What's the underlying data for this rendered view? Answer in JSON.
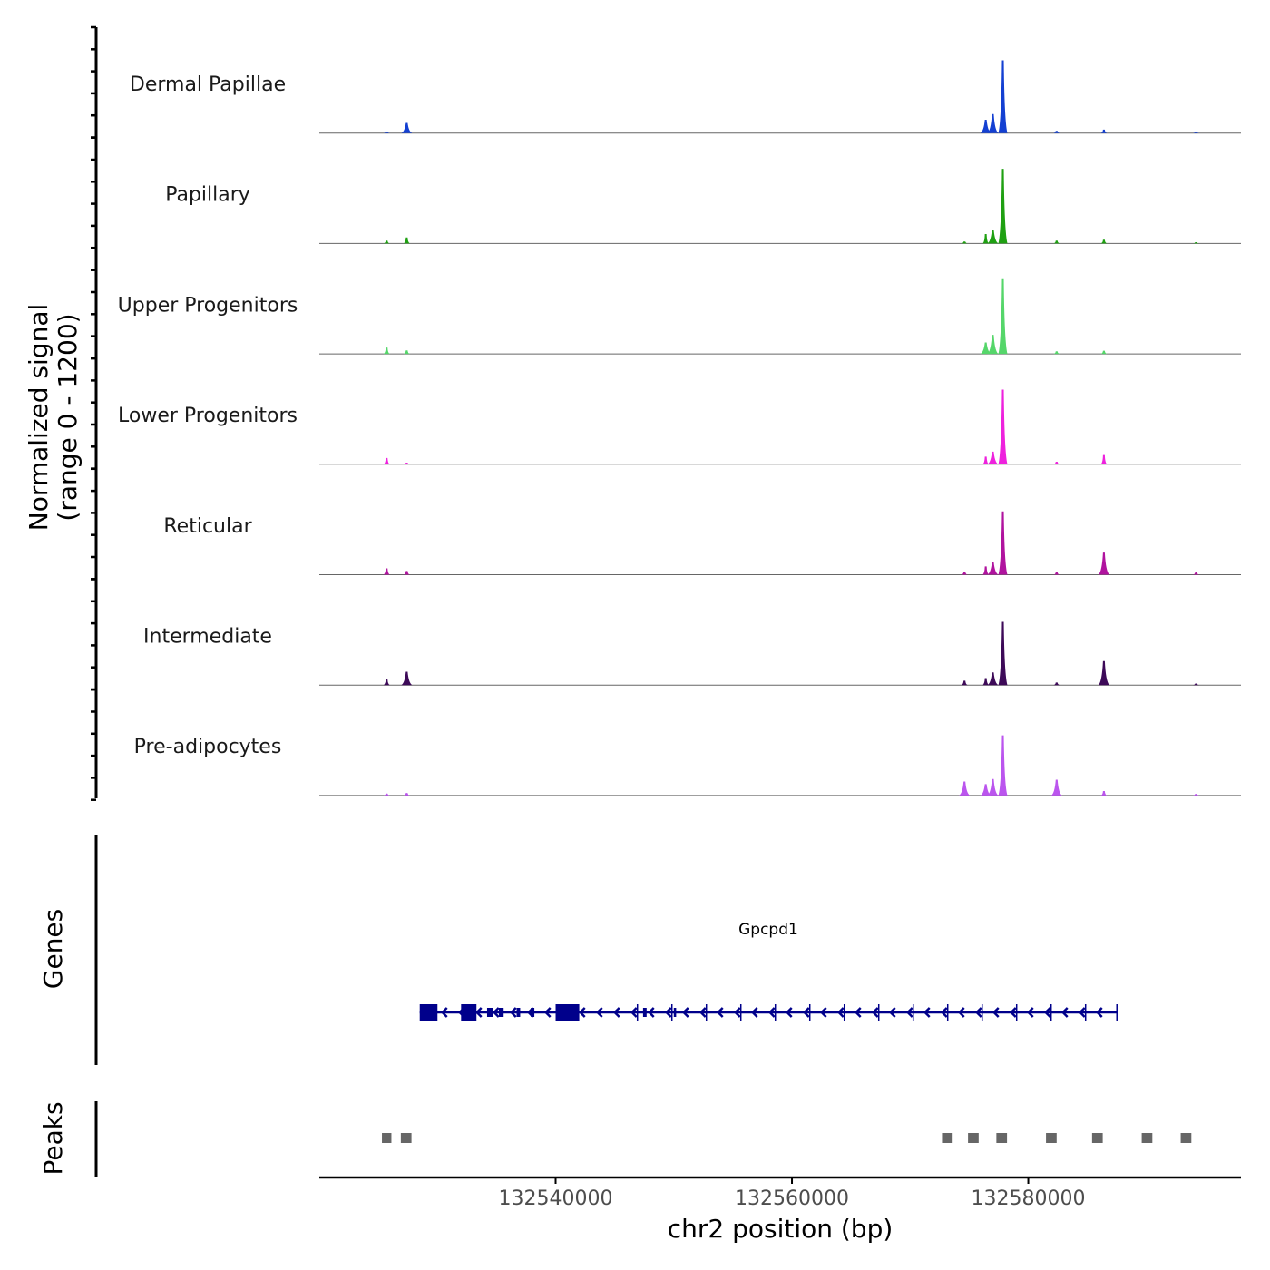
{
  "chart_data": {
    "type": "area",
    "chromosome": "chr2",
    "xlabel": "chr2 position (bp)",
    "ylabel_line1": "Normalized signal",
    "ylabel_line2": "(range 0 - 1200)",
    "xlim": [
      132520000,
      132598000
    ],
    "x_ticks": [
      132540000,
      132560000,
      132580000
    ],
    "x_tick_labels": [
      "132540000",
      "132560000",
      "132580000"
    ],
    "ylim": [
      0,
      1200
    ],
    "baseline_color": "#666666",
    "tracks": [
      {
        "name": "Dermal Papillae",
        "color": "#1440d2",
        "peaks": [
          [
            132525700,
            25
          ],
          [
            132527400,
            160
          ],
          [
            132576400,
            210
          ],
          [
            132577000,
            300
          ],
          [
            132577850,
            1150
          ],
          [
            132582400,
            35
          ],
          [
            132586400,
            55
          ],
          [
            132594200,
            20
          ]
        ]
      },
      {
        "name": "Papillary",
        "color": "#1fa012",
        "peaks": [
          [
            132525700,
            45
          ],
          [
            132527400,
            95
          ],
          [
            132574600,
            30
          ],
          [
            132576400,
            150
          ],
          [
            132577000,
            220
          ],
          [
            132577850,
            1180
          ],
          [
            132582400,
            45
          ],
          [
            132586400,
            60
          ],
          [
            132594200,
            20
          ]
        ]
      },
      {
        "name": "Upper Progenitors",
        "color": "#55d66a",
        "peaks": [
          [
            132525700,
            100
          ],
          [
            132527400,
            55
          ],
          [
            132576400,
            180
          ],
          [
            132577000,
            300
          ],
          [
            132577850,
            1180
          ],
          [
            132582400,
            40
          ],
          [
            132586400,
            50
          ]
        ]
      },
      {
        "name": "Lower Progenitors",
        "color": "#ee22dd",
        "peaks": [
          [
            132525700,
            100
          ],
          [
            132527400,
            25
          ],
          [
            132576400,
            120
          ],
          [
            132577000,
            200
          ],
          [
            132577850,
            1180
          ],
          [
            132582400,
            40
          ],
          [
            132586400,
            145
          ]
        ]
      },
      {
        "name": "Reticular",
        "color": "#b0139e",
        "peaks": [
          [
            132525700,
            100
          ],
          [
            132527400,
            60
          ],
          [
            132574600,
            45
          ],
          [
            132576400,
            130
          ],
          [
            132577000,
            200
          ],
          [
            132577850,
            1000
          ],
          [
            132582400,
            40
          ],
          [
            132586400,
            350
          ],
          [
            132594200,
            35
          ]
        ]
      },
      {
        "name": "Intermediate",
        "color": "#3d0a58",
        "peaks": [
          [
            132525700,
            90
          ],
          [
            132527400,
            210
          ],
          [
            132574600,
            70
          ],
          [
            132576400,
            110
          ],
          [
            132577000,
            200
          ],
          [
            132577850,
            1000
          ],
          [
            132582400,
            40
          ],
          [
            132586400,
            380
          ],
          [
            132594200,
            25
          ]
        ]
      },
      {
        "name": "Pre-adipocytes",
        "color": "#bb55ee",
        "peaks": [
          [
            132525700,
            30
          ],
          [
            132527400,
            40
          ],
          [
            132574600,
            220
          ],
          [
            132576400,
            180
          ],
          [
            132577000,
            260
          ],
          [
            132577850,
            950
          ],
          [
            132582400,
            250
          ],
          [
            132586400,
            70
          ],
          [
            132594200,
            25
          ]
        ]
      }
    ],
    "genes": [
      {
        "name": "Gpcpd1",
        "strand": "-",
        "start": 132528500,
        "end": 132587500,
        "color": "#00008b",
        "exons": [
          [
            132528500,
            132530000
          ],
          [
            132532000,
            132533300
          ],
          [
            132534200,
            132534700
          ],
          [
            132535200,
            132535600
          ],
          [
            132536700,
            132537000
          ],
          [
            132537900,
            132538200
          ],
          [
            132540000,
            132542000
          ],
          [
            132547400,
            132547700
          ],
          [
            132550000,
            132550200
          ]
        ]
      }
    ],
    "genes_label": "Genes",
    "peaks_label": "Peaks",
    "peaks_color": "#666666",
    "peak_regions": [
      [
        132525300,
        132526100
      ],
      [
        132526900,
        132527800
      ],
      [
        132572700,
        132573600
      ],
      [
        132574900,
        132575800
      ],
      [
        132577300,
        132578200
      ],
      [
        132581500,
        132582400
      ],
      [
        132585400,
        132586300
      ],
      [
        132589600,
        132590500
      ],
      [
        132592900,
        132593800
      ]
    ]
  }
}
